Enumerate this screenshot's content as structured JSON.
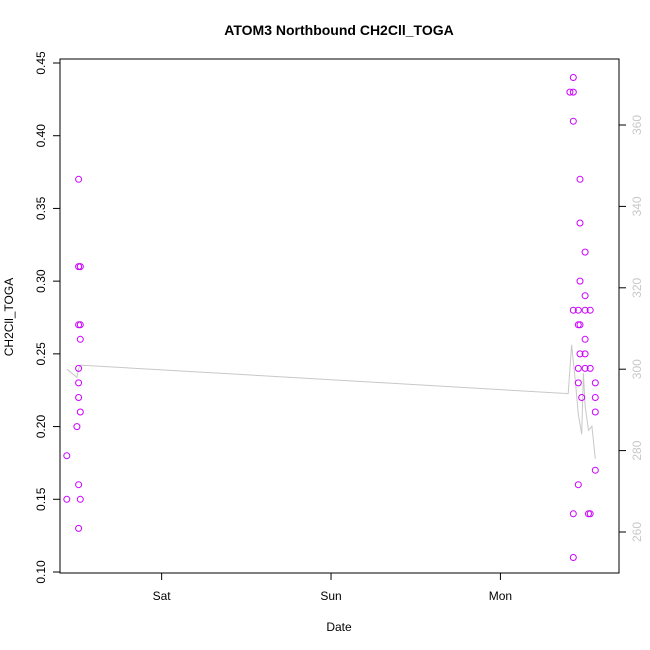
{
  "chart_data": {
    "type": "scatter",
    "title": "ATOM3 Northbound CH2Cll_TOGA",
    "xlabel": "Date",
    "ylabel": "CH2Cll_TOGA",
    "x_ticks": [
      "Sat",
      "Sun",
      "Mon"
    ],
    "x_tick_values": [
      1.0,
      2.0,
      3.0
    ],
    "xlim": [
      0.4,
      3.7
    ],
    "ylim": [
      0.1,
      0.45
    ],
    "y_ticks": [
      0.1,
      0.15,
      0.2,
      0.25,
      0.3,
      0.35,
      0.4,
      0.45
    ],
    "y_tick_labels": [
      "0.10",
      "0.15",
      "0.20",
      "0.25",
      "0.30",
      "0.35",
      "0.40",
      "0.45"
    ],
    "y2lim": [
      250,
      375
    ],
    "y2_ticks": [
      260,
      280,
      300,
      320,
      340,
      360
    ],
    "y2_tick_labels": [
      "260",
      "280",
      "300",
      "320",
      "340",
      "360"
    ],
    "grid": false,
    "colors": {
      "points": "#cc00ff",
      "secondary_line": "#c8c8c8",
      "axis": "#000000"
    },
    "series": [
      {
        "marker": "open-circle",
        "points": [
          {
            "x": 0.44,
            "y": 0.15
          },
          {
            "x": 0.44,
            "y": 0.18
          },
          {
            "x": 0.5,
            "y": 0.2
          },
          {
            "x": 0.51,
            "y": 0.22
          },
          {
            "x": 0.51,
            "y": 0.23
          },
          {
            "x": 0.51,
            "y": 0.24
          },
          {
            "x": 0.51,
            "y": 0.27
          },
          {
            "x": 0.51,
            "y": 0.31
          },
          {
            "x": 0.51,
            "y": 0.37
          },
          {
            "x": 0.51,
            "y": 0.13
          },
          {
            "x": 0.51,
            "y": 0.16
          },
          {
            "x": 0.52,
            "y": 0.15
          },
          {
            "x": 0.52,
            "y": 0.21
          },
          {
            "x": 0.52,
            "y": 0.26
          },
          {
            "x": 0.52,
            "y": 0.27
          },
          {
            "x": 0.52,
            "y": 0.31
          },
          {
            "x": 3.41,
            "y": 0.43
          },
          {
            "x": 3.43,
            "y": 0.11
          },
          {
            "x": 3.43,
            "y": 0.14
          },
          {
            "x": 3.43,
            "y": 0.28
          },
          {
            "x": 3.43,
            "y": 0.41
          },
          {
            "x": 3.43,
            "y": 0.43
          },
          {
            "x": 3.43,
            "y": 0.44
          },
          {
            "x": 3.46,
            "y": 0.16
          },
          {
            "x": 3.46,
            "y": 0.23
          },
          {
            "x": 3.46,
            "y": 0.24
          },
          {
            "x": 3.46,
            "y": 0.27
          },
          {
            "x": 3.46,
            "y": 0.28
          },
          {
            "x": 3.47,
            "y": 0.25
          },
          {
            "x": 3.47,
            "y": 0.27
          },
          {
            "x": 3.47,
            "y": 0.3
          },
          {
            "x": 3.47,
            "y": 0.34
          },
          {
            "x": 3.47,
            "y": 0.37
          },
          {
            "x": 3.48,
            "y": 0.22
          },
          {
            "x": 3.5,
            "y": 0.24
          },
          {
            "x": 3.5,
            "y": 0.25
          },
          {
            "x": 3.5,
            "y": 0.26
          },
          {
            "x": 3.5,
            "y": 0.28
          },
          {
            "x": 3.5,
            "y": 0.29
          },
          {
            "x": 3.5,
            "y": 0.32
          },
          {
            "x": 3.52,
            "y": 0.14
          },
          {
            "x": 3.53,
            "y": 0.14
          },
          {
            "x": 3.53,
            "y": 0.24
          },
          {
            "x": 3.53,
            "y": 0.28
          },
          {
            "x": 3.56,
            "y": 0.17
          },
          {
            "x": 3.56,
            "y": 0.21
          },
          {
            "x": 3.56,
            "y": 0.22
          },
          {
            "x": 3.56,
            "y": 0.23
          }
        ]
      },
      {
        "axis": "secondary",
        "line": [
          [
            0.44,
            300
          ],
          [
            0.5,
            298
          ],
          [
            0.51,
            300
          ],
          [
            0.52,
            301
          ],
          [
            3.4,
            294
          ],
          [
            3.42,
            306
          ],
          [
            3.44,
            298
          ],
          [
            3.46,
            289
          ],
          [
            3.48,
            284
          ],
          [
            3.49,
            299
          ],
          [
            3.5,
            291
          ],
          [
            3.52,
            285
          ],
          [
            3.54,
            286
          ],
          [
            3.56,
            278
          ]
        ]
      }
    ]
  }
}
